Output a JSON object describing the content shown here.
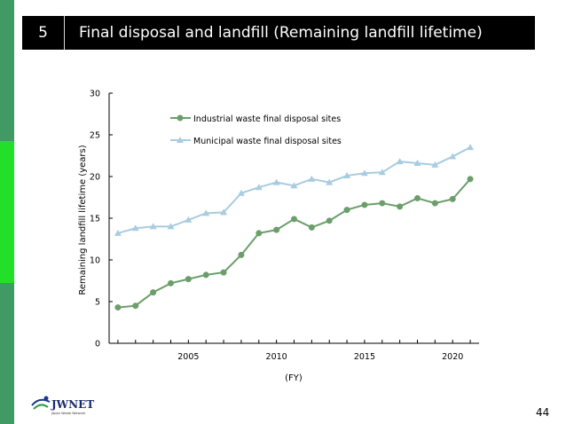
{
  "header": {
    "number": "5",
    "title": "Final disposal and landfill (Remaining landfill lifetime)"
  },
  "logo": {
    "text": "JWNET",
    "subtext": "Japan Waste Network"
  },
  "page_number": "44",
  "colors": {
    "industrial": "#6b9e6b",
    "municipal": "#a8cce0",
    "accent": "#3f9a63",
    "header_bg": "#000000"
  },
  "chart_data": {
    "type": "line",
    "title": "",
    "xlabel": "(FY)",
    "ylabel": "Remaining landfill lifetime (years)",
    "xlim": [
      2000.5,
      2021.5
    ],
    "ylim": [
      0,
      30
    ],
    "x_ticks": [
      2005,
      2010,
      2015,
      2020
    ],
    "y_ticks": [
      0,
      5,
      10,
      15,
      20,
      25,
      30
    ],
    "legend_position": "top-left",
    "grid": false,
    "x": [
      2001,
      2002,
      2003,
      2004,
      2005,
      2006,
      2007,
      2008,
      2009,
      2010,
      2011,
      2012,
      2013,
      2014,
      2015,
      2016,
      2017,
      2018,
      2019,
      2020,
      2021
    ],
    "series": [
      {
        "name": "Industrial waste final disposal sites",
        "marker": "circle",
        "color": "#6b9e6b",
        "values": [
          4.3,
          4.5,
          6.1,
          7.2,
          7.7,
          8.2,
          8.5,
          10.6,
          13.2,
          13.6,
          14.9,
          13.9,
          14.7,
          16.0,
          16.6,
          16.8,
          16.4,
          17.4,
          16.8,
          17.3,
          19.7
        ]
      },
      {
        "name": "Municipal waste final disposal sites",
        "marker": "triangle",
        "color": "#a8cce0",
        "values": [
          13.2,
          13.8,
          14.0,
          14.0,
          14.8,
          15.6,
          15.7,
          18.0,
          18.7,
          19.3,
          18.9,
          19.7,
          19.3,
          20.1,
          20.4,
          20.5,
          21.8,
          21.6,
          21.4,
          22.4,
          23.5
        ]
      }
    ]
  }
}
